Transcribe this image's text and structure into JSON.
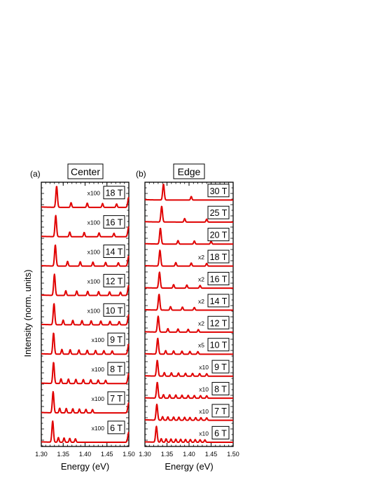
{
  "figure": {
    "ylabel": "Intensity (norm. units)",
    "line_color": "#e00000"
  },
  "chart_data": [
    {
      "type": "line",
      "panel_label": "(a)",
      "title": "Center",
      "xlabel": "Energy (eV)",
      "ylabel": "Intensity (norm. units)",
      "xlim": [
        1.3,
        1.5
      ],
      "x_ticks": [
        "1.30",
        "1.35",
        "1.40",
        "1.45",
        "1.50"
      ],
      "series": [
        {
          "name": "18 T",
          "multiplier": "x100",
          "main_peak": 1.335,
          "side_peaks": [
            1.368,
            1.405,
            1.44,
            1.472
          ],
          "edge_peak": true
        },
        {
          "name": "16 T",
          "multiplier": "x100",
          "main_peak": 1.333,
          "side_peaks": [
            1.365,
            1.398,
            1.432,
            1.466
          ],
          "edge_peak": true
        },
        {
          "name": "14 T",
          "multiplier": "x100",
          "main_peak": 1.332,
          "side_peaks": [
            1.36,
            1.389,
            1.418,
            1.447,
            1.476
          ],
          "edge_peak": true
        },
        {
          "name": "12 T",
          "multiplier": "x100",
          "main_peak": 1.33,
          "side_peaks": [
            1.356,
            1.381,
            1.406,
            1.431,
            1.456,
            1.481
          ],
          "edge_peak": true
        },
        {
          "name": "10 T",
          "multiplier": "x100",
          "main_peak": 1.329,
          "side_peaks": [
            1.35,
            1.372,
            1.393,
            1.414,
            1.436,
            1.457,
            1.478
          ],
          "edge_peak": true
        },
        {
          "name": "9 T",
          "multiplier": "x100",
          "main_peak": 1.328,
          "side_peaks": [
            1.347,
            1.366,
            1.386,
            1.405,
            1.424,
            1.443,
            1.462
          ],
          "edge_peak": true
        },
        {
          "name": "8 T",
          "multiplier": "x100",
          "main_peak": 1.328,
          "side_peaks": [
            1.345,
            1.362,
            1.379,
            1.396,
            1.413,
            1.43,
            1.447
          ],
          "edge_peak": true
        },
        {
          "name": "7 T",
          "multiplier": "x100",
          "main_peak": 1.327,
          "side_peaks": [
            1.342,
            1.357,
            1.372,
            1.387,
            1.402,
            1.417
          ],
          "edge_peak": true
        },
        {
          "name": "6 T",
          "multiplier": "x100",
          "main_peak": 1.326,
          "side_peaks": [
            1.339,
            1.352,
            1.365,
            1.378
          ],
          "edge_peak": true
        }
      ]
    },
    {
      "type": "line",
      "panel_label": "(b)",
      "title": "Edge",
      "xlabel": "Energy (eV)",
      "ylabel": "Intensity (norm. units)",
      "xlim": [
        1.3,
        1.5
      ],
      "x_ticks": [
        "1.30",
        "1.35",
        "1.40",
        "1.45",
        "1.50"
      ],
      "series": [
        {
          "name": "30 T",
          "multiplier": "",
          "main_peak": 1.342,
          "side_peaks": [
            1.405
          ],
          "edge_peak": false
        },
        {
          "name": "25 T",
          "multiplier": "",
          "main_peak": 1.338,
          "side_peaks": [
            1.39,
            1.44
          ],
          "edge_peak": false
        },
        {
          "name": "20 T",
          "multiplier": "",
          "main_peak": 1.335,
          "side_peaks": [
            1.375,
            1.412,
            1.45
          ],
          "edge_peak": false
        },
        {
          "name": "18 T",
          "multiplier": "x2",
          "main_peak": 1.334,
          "side_peaks": [
            1.37,
            1.405,
            1.44
          ],
          "edge_peak": false
        },
        {
          "name": "16 T",
          "multiplier": "x2",
          "main_peak": 1.333,
          "side_peaks": [
            1.365,
            1.395,
            1.425
          ],
          "edge_peak": false
        },
        {
          "name": "14 T",
          "multiplier": "x2",
          "main_peak": 1.332,
          "side_peaks": [
            1.358,
            1.385,
            1.412
          ],
          "edge_peak": false
        },
        {
          "name": "12 T",
          "multiplier": "x2",
          "main_peak": 1.33,
          "side_peaks": [
            1.352,
            1.375,
            1.398,
            1.421
          ],
          "edge_peak": false
        },
        {
          "name": "10 T",
          "multiplier": "x5",
          "main_peak": 1.329,
          "side_peaks": [
            1.347,
            1.365,
            1.384,
            1.402,
            1.42
          ],
          "edge_peak": false
        },
        {
          "name": "9 T",
          "multiplier": "x10",
          "main_peak": 1.328,
          "side_peaks": [
            1.344,
            1.36,
            1.376,
            1.392,
            1.408,
            1.424,
            1.44
          ],
          "edge_peak": false
        },
        {
          "name": "8 T",
          "multiplier": "x10",
          "main_peak": 1.328,
          "side_peaks": [
            1.342,
            1.356,
            1.37,
            1.384,
            1.398,
            1.412,
            1.426,
            1.44
          ],
          "edge_peak": false
        },
        {
          "name": "7 T",
          "multiplier": "x10",
          "main_peak": 1.327,
          "side_peaks": [
            1.34,
            1.352,
            1.365,
            1.377,
            1.39,
            1.402,
            1.415,
            1.427,
            1.44
          ],
          "edge_peak": false
        },
        {
          "name": "6 T",
          "multiplier": "x10",
          "main_peak": 1.326,
          "side_peaks": [
            1.337,
            1.348,
            1.359,
            1.37,
            1.381,
            1.392,
            1.403,
            1.414,
            1.425,
            1.436
          ],
          "edge_peak": false
        }
      ]
    }
  ]
}
